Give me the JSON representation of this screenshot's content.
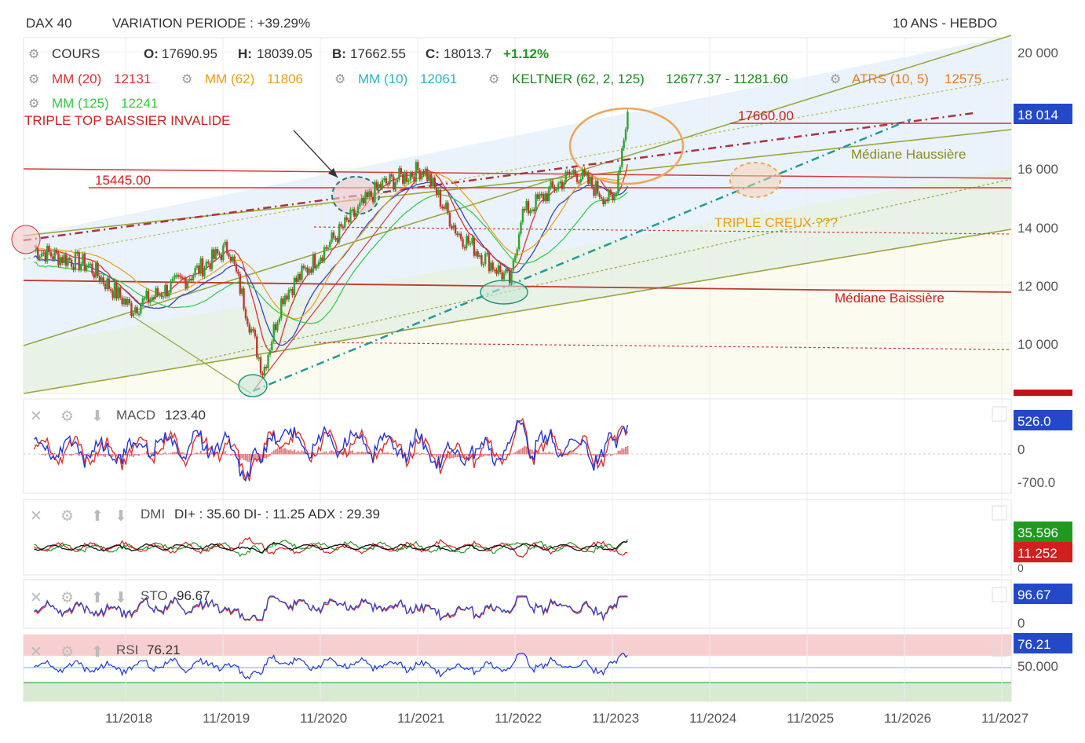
{
  "header": {
    "symbol": "DAX 40",
    "variation": "VARIATION PERIODE : +39.29%",
    "period": "10 ANS - HEBDO"
  },
  "legend": {
    "cours_label": "COURS",
    "o_label": "O:",
    "o_value": "17690.95",
    "h_label": "H:",
    "h_value": "18039.05",
    "b_label": "B:",
    "b_value": "17662.55",
    "c_label": "C:",
    "c_value": "18013.7",
    "change": "+1.12%",
    "mm20_label": "MM (20)",
    "mm20_value": "12131",
    "mm62_label": "MM (62)",
    "mm62_value": "11806",
    "mm10_label": "MM (10)",
    "mm10_value": "12061",
    "keltner_label": "KELTNER (62, 2, 125)",
    "keltner_value": "12677.37 - 11281.60",
    "atrs_label": "ATRS (10, 5)",
    "atrs_value": "12575",
    "mm125_label": "MM (125)",
    "mm125_value": "12241"
  },
  "annotations": {
    "triple_top": "TRIPLE TOP BAISSIER INVALIDE",
    "level_high": "17660.00",
    "level_low": "15445.00",
    "mediane_haussiere": "Médiane Haussière",
    "triple_creux": "TRIPLE CREUX ???",
    "mediane_baissiere": "Médiane Baissière"
  },
  "price_axis": {
    "ticks": [
      "20 000",
      "18 000",
      "16 000",
      "14 000",
      "12 000",
      "10 000"
    ],
    "last_price_tag": "18 014"
  },
  "x_axis": {
    "ticks": [
      "11/2018",
      "11/2019",
      "11/2020",
      "11/2021",
      "11/2022",
      "11/2023",
      "11/2024",
      "11/2025",
      "11/2026",
      "11/2027"
    ]
  },
  "panels": {
    "macd": {
      "label": "MACD",
      "value": "123.40",
      "tag": "526.0",
      "ticks": [
        "0",
        "-700.0"
      ]
    },
    "dmi": {
      "label": "DMI",
      "value": "DI+ : 35.60 DI- : 11.25 ADX : 29.39",
      "tag_plus": "35.596",
      "tag_minus": "11.252",
      "ticks": [
        "0"
      ]
    },
    "sto": {
      "label": "STO",
      "value": "96.67",
      "tag": "96.67",
      "ticks": [
        "0"
      ]
    },
    "rsi": {
      "label": "RSI",
      "value": "76.21",
      "tag": "76.21",
      "ticks": [
        "50.000"
      ]
    }
  },
  "colors": {
    "candle_up": "#2fa52f",
    "candle_down": "#c0392b",
    "mm20": "#e03030",
    "mm62": "#f39c12",
    "mm10": "#26b5c4",
    "keltner": "#1a8a1a",
    "atrs": "#e67e22",
    "mm125": "#2ecc40",
    "channel": "#9aa63a",
    "macd_line": "#2336d9",
    "signal_line": "#e03030",
    "tag_blue": "#2349c9",
    "tag_green": "#1e9a1e",
    "tag_red": "#d11f1f"
  },
  "chart_data": {
    "type": "line",
    "title": "DAX 40",
    "xlabel": "",
    "ylabel": "",
    "x": [
      "11/2017",
      "05/2018",
      "11/2018",
      "05/2019",
      "11/2019",
      "03/2020",
      "05/2020",
      "11/2020",
      "05/2021",
      "11/2021",
      "03/2022",
      "09/2022",
      "11/2022",
      "05/2023",
      "10/2023",
      "12/2023"
    ],
    "series": [
      {
        "name": "COURS",
        "values": [
          13200,
          12700,
          11200,
          12200,
          13300,
          9000,
          11600,
          13300,
          15400,
          16000,
          13800,
          12100,
          14400,
          15900,
          14800,
          18014
        ]
      }
    ],
    "ylim": [
      8500,
      20500
    ],
    "levels": [
      17660,
      15445
    ],
    "indicators": {
      "MACD": 123.4,
      "DI+": 35.6,
      "DI-": 11.25,
      "ADX": 29.39,
      "STO": 96.67,
      "RSI": 76.21
    },
    "grid": true,
    "legend_placement": "top-left"
  }
}
